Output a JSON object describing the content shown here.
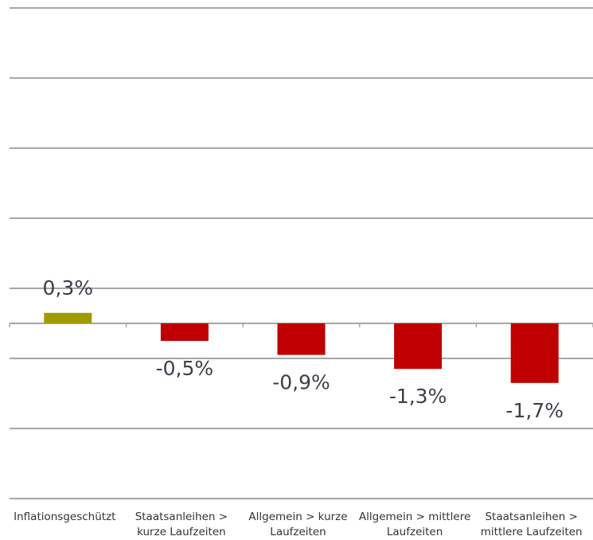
{
  "chart_data": {
    "type": "bar",
    "categories": [
      "Inflationsgeschützt",
      "Staatsanleihen > kurze Laufzeiten",
      "Allgemein > kurze Laufzeiten",
      "Allgemein > mittlere Laufzeiten",
      "Staatsanleihen > mittlere Laufzeiten"
    ],
    "values": [
      0.3,
      -0.5,
      -0.9,
      -1.3,
      -1.7
    ],
    "value_labels": [
      "0,3%",
      "-0,5%",
      "-0,9%",
      "-1,3%",
      "-1,7%"
    ],
    "colors": [
      "#a19b00",
      "#c00000",
      "#c00000",
      "#c00000",
      "#c00000"
    ],
    "ylim": [
      -5,
      9
    ],
    "yticks": [
      -5,
      -3,
      -1,
      1,
      3,
      5,
      7,
      9
    ],
    "grid": true
  }
}
